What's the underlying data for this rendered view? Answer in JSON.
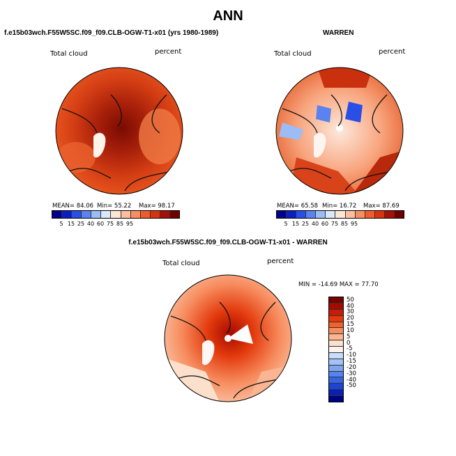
{
  "title": "ANN",
  "left_panel": {
    "case": "f.e15b03wch.F55W5SC.f09_f09.CLB-OGW-T1-x01 (yrs 1980-1989)",
    "variable": "Total cloud",
    "units": "percent",
    "stats": {
      "mean": "MEAN= 84.06",
      "min": "Min= 55.22",
      "max": "Max= 98.17"
    }
  },
  "right_panel": {
    "case": "WARREN",
    "variable": "Total cloud",
    "units": "percent",
    "stats": {
      "mean": "MEAN= 65.58",
      "min": "Min= 16.72",
      "max": "Max= 87.69"
    }
  },
  "diff_panel": {
    "case": "f.e15b03wch.F55W5SC.f09_f09.CLB-OGW-T1-x01 - WARREN",
    "variable": "Total cloud",
    "units": "percent",
    "stats": "MIN = -14.69 MAX = 77.70"
  },
  "abs_colorbar": {
    "colors": [
      "#00008b",
      "#0b1fc2",
      "#2a4fe6",
      "#5a82f0",
      "#9cbcf6",
      "#d9e8fb",
      "#fde6d8",
      "#fbbf9f",
      "#f88d62",
      "#f05a2c",
      "#d8330f",
      "#a60f05",
      "#6e0000"
    ],
    "ticks": [
      "5",
      "15",
      "25",
      "40",
      "60",
      "75",
      "85",
      "95"
    ]
  },
  "diff_colorbar": {
    "colors": [
      "#7a0000",
      "#a50a02",
      "#c91c05",
      "#e23a0d",
      "#f2612c",
      "#f78c5e",
      "#fbb593",
      "#fde0cc",
      "#fef2ea",
      "#c9dcfa",
      "#a3c2f6",
      "#7ea4f1",
      "#5784ec",
      "#3366e6",
      "#1d44d4",
      "#0a20b0",
      "#000082"
    ],
    "ticks": [
      "50",
      "40",
      "30",
      "20",
      "15",
      "10",
      "5",
      "0",
      "-5",
      "-10",
      "-15",
      "-20",
      "-30",
      "-40",
      "-50"
    ]
  }
}
